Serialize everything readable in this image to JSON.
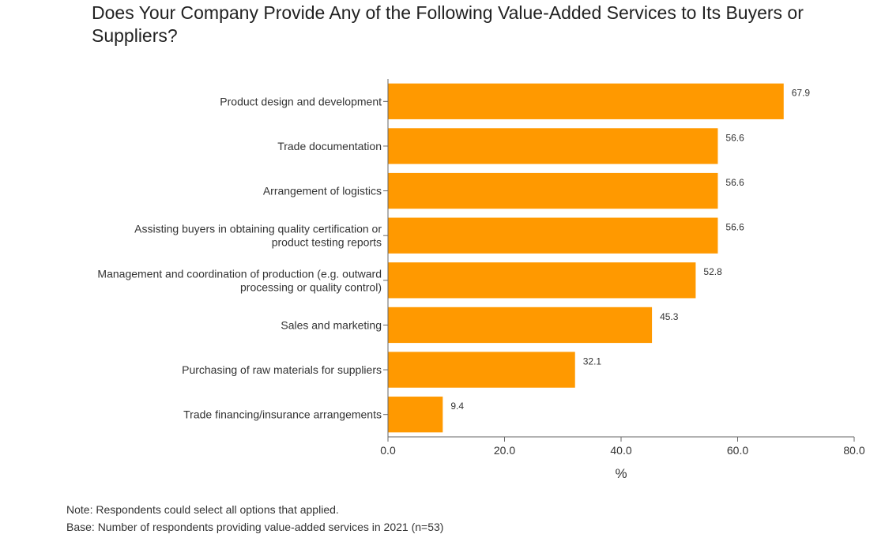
{
  "chart_data": {
    "type": "bar",
    "orientation": "horizontal",
    "title": "Does Your Company Provide Any of the Following Value-Added Services to Its Buyers or Suppliers?",
    "xlabel": "%",
    "ylabel": "",
    "xlim": [
      0,
      80
    ],
    "xticks": [
      0,
      20,
      40,
      60,
      80
    ],
    "tick_labels": [
      "0.0",
      "20.0",
      "40.0",
      "60.0",
      "80.0"
    ],
    "grid": false,
    "legend": "none",
    "bar_color": "#FF9900",
    "categories": [
      [
        "Product design and development"
      ],
      [
        "Trade documentation"
      ],
      [
        "Arrangement of logistics"
      ],
      [
        "Assisting buyers in obtaining quality certification or",
        "product testing reports"
      ],
      [
        "Management and coordination of production (e.g. outward",
        "processing or quality control)"
      ],
      [
        "Sales and marketing"
      ],
      [
        "Purchasing of raw materials for suppliers"
      ],
      [
        "Trade financing/insurance arrangements"
      ]
    ],
    "values": [
      67.9,
      56.6,
      56.6,
      56.6,
      52.8,
      45.3,
      32.1,
      9.4
    ],
    "value_labels": [
      "67.9",
      "56.6",
      "56.6",
      "56.6",
      "52.8",
      "45.3",
      "32.1",
      "9.4"
    ]
  },
  "notes": {
    "note": "Note: Respondents could select all options that applied.",
    "base": "Base: Number of respondents providing value-added services in 2021 (n=53)"
  }
}
